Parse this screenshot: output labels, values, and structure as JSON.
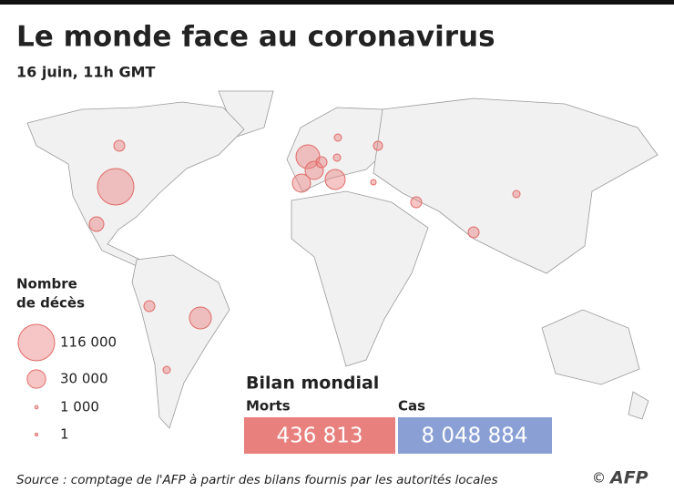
{
  "header": {
    "title": "Le monde face au coronavirus",
    "subtitle": "16 juin, 11h GMT"
  },
  "legend": {
    "title_lines": [
      "Nombre",
      "de décès"
    ],
    "items": [
      {
        "value": 116000,
        "label": "116 000"
      },
      {
        "value": 30000,
        "label": "30 000"
      },
      {
        "value": 1000,
        "label": "1 000"
      },
      {
        "value": 1,
        "label": "1"
      }
    ]
  },
  "summary": {
    "title": "Bilan mondial",
    "deaths": {
      "label": "Morts",
      "value_label": "436 813",
      "color": "#e8807e"
    },
    "cases": {
      "label": "Cas",
      "value_label": "8 048 884",
      "color": "#8aa0d4"
    }
  },
  "footer": {
    "source": "Source : comptage de l'AFP à partir des bilans fournis par les autorités locales",
    "copyright": "©",
    "logo": "AFP"
  }
}
